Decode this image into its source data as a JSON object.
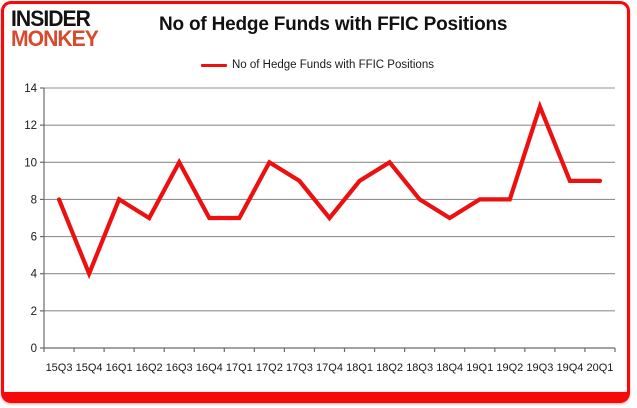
{
  "logo": {
    "line1": "INSIDER",
    "line2": "MONKEY"
  },
  "title": "No of Hedge Funds with FFIC Positions",
  "legend": {
    "label": "No of Hedge Funds with FFIC Positions"
  },
  "colors": {
    "line": "#ec1111",
    "grid": "#919191",
    "axis": "#6b6b6b",
    "tick_label": "#1a1a1a",
    "frame": "#f60909",
    "logo_black": "#131313",
    "logo_red": "#d64a2e"
  },
  "chart_data": {
    "type": "line",
    "title": "No of Hedge Funds with FFIC Positions",
    "categories": [
      "15Q3",
      "15Q4",
      "16Q1",
      "16Q2",
      "16Q3",
      "16Q4",
      "17Q1",
      "17Q2",
      "17Q3",
      "17Q4",
      "18Q1",
      "18Q2",
      "18Q3",
      "18Q4",
      "19Q1",
      "19Q2",
      "19Q3",
      "19Q4",
      "20Q1"
    ],
    "series": [
      {
        "name": "No of Hedge Funds with FFIC Positions",
        "values": [
          8,
          4,
          8,
          7,
          10,
          7,
          7,
          10,
          9,
          7,
          9,
          10,
          8,
          7,
          8,
          8,
          13,
          9,
          9
        ]
      }
    ],
    "xlabel": "",
    "ylabel": "",
    "ylim": [
      0,
      14
    ],
    "yticks": [
      0,
      2,
      4,
      6,
      8,
      10,
      12,
      14
    ],
    "grid": true,
    "legend_position": "top"
  }
}
